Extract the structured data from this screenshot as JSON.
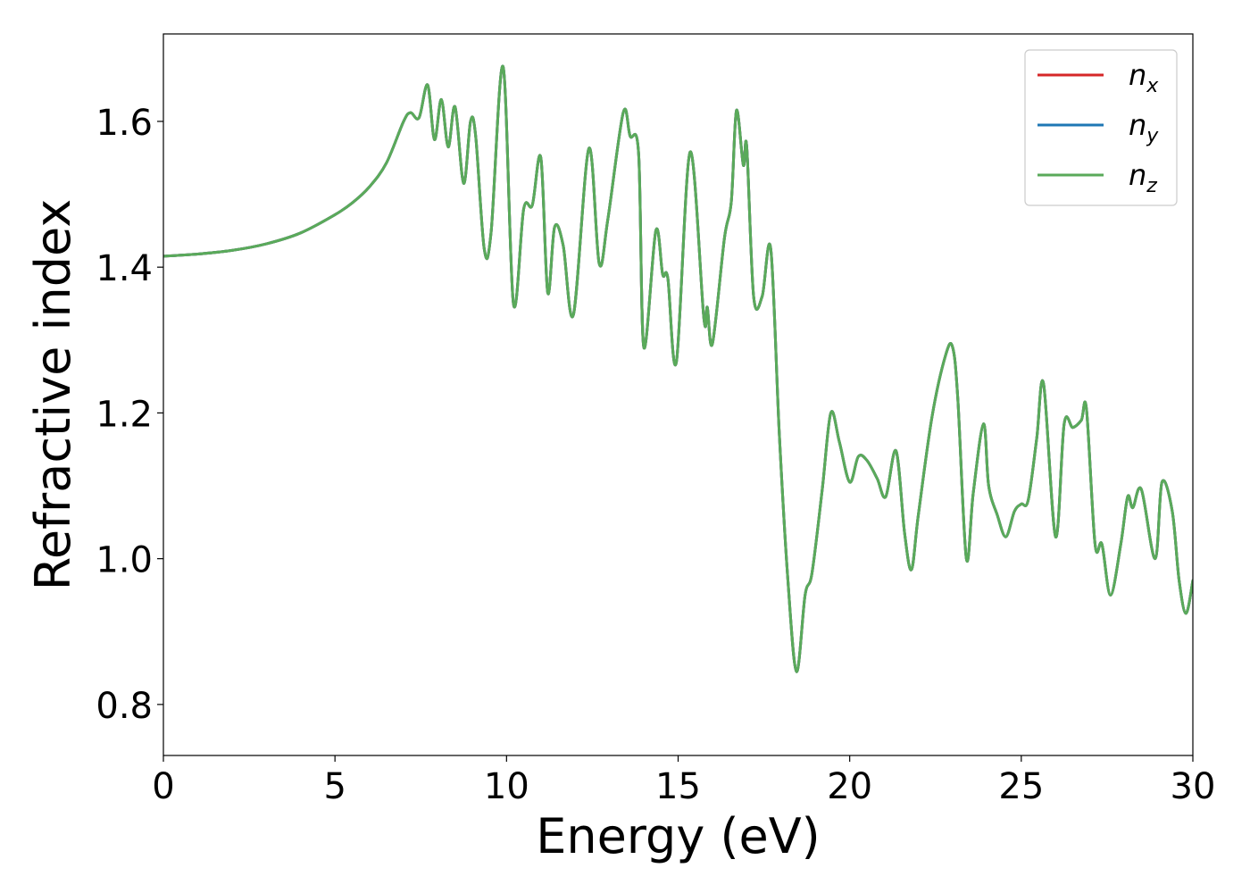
{
  "chart_data": {
    "type": "line",
    "xlabel": "Energy (eV)",
    "ylabel": "Refractive index",
    "xlim": [
      0,
      30
    ],
    "ylim": [
      0.73,
      1.72
    ],
    "xticks": [
      0,
      5,
      10,
      15,
      20,
      25,
      30
    ],
    "xtick_labels": [
      "0",
      "5",
      "10",
      "15",
      "20",
      "25",
      "30"
    ],
    "yticks": [
      0.8,
      1.0,
      1.2,
      1.4,
      1.6
    ],
    "ytick_labels": [
      "0.8",
      "1.0",
      "1.2",
      "1.4",
      "1.6"
    ],
    "grid": false,
    "legend_position": "top-right",
    "series": [
      {
        "name": "n_x",
        "label_base": "n",
        "label_sub": "x",
        "color": "#d62728",
        "x": [
          0,
          1,
          2,
          3,
          4,
          5,
          5.5,
          6,
          6.5,
          7,
          7.2,
          7.45,
          7.7,
          7.9,
          8.1,
          8.3,
          8.5,
          8.75,
          8.95,
          9.1,
          9.35,
          9.55,
          9.9,
          10.2,
          10.5,
          10.75,
          11.0,
          11.2,
          11.4,
          11.65,
          11.95,
          12.4,
          12.7,
          12.95,
          13.4,
          13.6,
          13.85,
          14.0,
          14.35,
          14.55,
          14.7,
          14.95,
          15.35,
          15.75,
          15.85,
          16.0,
          16.35,
          16.55,
          16.7,
          16.9,
          17.0,
          17.2,
          17.45,
          17.7,
          17.95,
          18.2,
          18.45,
          18.7,
          18.9,
          19.2,
          19.45,
          19.7,
          20.0,
          20.25,
          20.5,
          20.8,
          21.05,
          21.35,
          21.6,
          21.8,
          22.0,
          22.4,
          22.8,
          23.0,
          23.15,
          23.4,
          23.6,
          23.9,
          24.05,
          24.3,
          24.55,
          24.8,
          25.0,
          25.2,
          25.45,
          25.65,
          26.0,
          26.25,
          26.5,
          26.75,
          26.9,
          27.15,
          27.35,
          27.6,
          27.9,
          28.1,
          28.25,
          28.5,
          28.9,
          29.1,
          29.4,
          29.6,
          29.8,
          30.0
        ],
        "y": [
          1.415,
          1.418,
          1.423,
          1.432,
          1.447,
          1.472,
          1.488,
          1.51,
          1.543,
          1.6,
          1.612,
          1.605,
          1.65,
          1.575,
          1.63,
          1.565,
          1.62,
          1.515,
          1.6,
          1.58,
          1.425,
          1.448,
          1.675,
          1.35,
          1.48,
          1.485,
          1.55,
          1.365,
          1.455,
          1.43,
          1.335,
          1.563,
          1.405,
          1.465,
          1.612,
          1.58,
          1.555,
          1.29,
          1.45,
          1.39,
          1.385,
          1.27,
          1.558,
          1.33,
          1.345,
          1.295,
          1.44,
          1.49,
          1.615,
          1.54,
          1.565,
          1.36,
          1.36,
          1.425,
          1.17,
          0.97,
          0.845,
          0.95,
          0.98,
          1.095,
          1.2,
          1.16,
          1.105,
          1.14,
          1.135,
          1.11,
          1.085,
          1.148,
          1.035,
          0.985,
          1.06,
          1.195,
          1.28,
          1.29,
          1.22,
          1.0,
          1.09,
          1.185,
          1.1,
          1.06,
          1.03,
          1.065,
          1.075,
          1.08,
          1.165,
          1.24,
          1.03,
          1.185,
          1.18,
          1.19,
          1.205,
          1.02,
          1.02,
          0.95,
          1.02,
          1.085,
          1.07,
          1.095,
          1.0,
          1.105,
          1.065,
          0.97,
          0.925,
          0.97
        ]
      },
      {
        "name": "n_y",
        "label_base": "n",
        "label_sub": "y",
        "color": "#1f77b4",
        "x": [
          0,
          1,
          2,
          3,
          4,
          5,
          5.5,
          6,
          6.5,
          7,
          7.2,
          7.45,
          7.7,
          7.9,
          8.1,
          8.3,
          8.5,
          8.75,
          8.95,
          9.1,
          9.35,
          9.55,
          9.9,
          10.2,
          10.5,
          10.75,
          11.0,
          11.2,
          11.4,
          11.65,
          11.95,
          12.4,
          12.7,
          12.95,
          13.4,
          13.6,
          13.85,
          14.0,
          14.35,
          14.55,
          14.7,
          14.95,
          15.35,
          15.75,
          15.85,
          16.0,
          16.35,
          16.55,
          16.7,
          16.9,
          17.0,
          17.2,
          17.45,
          17.7,
          17.95,
          18.2,
          18.45,
          18.7,
          18.9,
          19.2,
          19.45,
          19.7,
          20.0,
          20.25,
          20.5,
          20.8,
          21.05,
          21.35,
          21.6,
          21.8,
          22.0,
          22.4,
          22.8,
          23.0,
          23.15,
          23.4,
          23.6,
          23.9,
          24.05,
          24.3,
          24.55,
          24.8,
          25.0,
          25.2,
          25.45,
          25.65,
          26.0,
          26.25,
          26.5,
          26.75,
          26.9,
          27.15,
          27.35,
          27.6,
          27.9,
          28.1,
          28.25,
          28.5,
          28.9,
          29.1,
          29.4,
          29.6,
          29.8,
          30.0
        ],
        "y": [
          1.415,
          1.418,
          1.423,
          1.432,
          1.447,
          1.472,
          1.488,
          1.51,
          1.543,
          1.6,
          1.612,
          1.605,
          1.65,
          1.575,
          1.63,
          1.565,
          1.62,
          1.515,
          1.6,
          1.58,
          1.425,
          1.448,
          1.675,
          1.35,
          1.48,
          1.485,
          1.55,
          1.365,
          1.455,
          1.43,
          1.335,
          1.563,
          1.405,
          1.465,
          1.612,
          1.58,
          1.555,
          1.29,
          1.45,
          1.39,
          1.385,
          1.27,
          1.558,
          1.33,
          1.345,
          1.295,
          1.44,
          1.49,
          1.615,
          1.54,
          1.565,
          1.36,
          1.36,
          1.425,
          1.17,
          0.97,
          0.845,
          0.95,
          0.98,
          1.095,
          1.2,
          1.16,
          1.105,
          1.14,
          1.135,
          1.11,
          1.085,
          1.148,
          1.035,
          0.985,
          1.06,
          1.195,
          1.28,
          1.29,
          1.22,
          1.0,
          1.09,
          1.185,
          1.1,
          1.06,
          1.03,
          1.065,
          1.075,
          1.08,
          1.165,
          1.24,
          1.03,
          1.185,
          1.18,
          1.19,
          1.205,
          1.02,
          1.02,
          0.95,
          1.02,
          1.085,
          1.07,
          1.095,
          1.0,
          1.105,
          1.065,
          0.97,
          0.925,
          0.97
        ]
      },
      {
        "name": "n_z",
        "label_base": "n",
        "label_sub": "z",
        "color": "#5aaa5a",
        "x": [
          0,
          1,
          2,
          3,
          4,
          5,
          5.5,
          6,
          6.5,
          7,
          7.2,
          7.45,
          7.7,
          7.9,
          8.1,
          8.3,
          8.5,
          8.75,
          8.95,
          9.1,
          9.35,
          9.55,
          9.9,
          10.2,
          10.5,
          10.75,
          11.0,
          11.2,
          11.4,
          11.65,
          11.95,
          12.4,
          12.7,
          12.95,
          13.4,
          13.6,
          13.85,
          14.0,
          14.35,
          14.55,
          14.7,
          14.95,
          15.35,
          15.75,
          15.85,
          16.0,
          16.35,
          16.55,
          16.7,
          16.9,
          17.0,
          17.2,
          17.45,
          17.7,
          17.95,
          18.2,
          18.45,
          18.7,
          18.9,
          19.2,
          19.45,
          19.7,
          20.0,
          20.25,
          20.5,
          20.8,
          21.05,
          21.35,
          21.6,
          21.8,
          22.0,
          22.4,
          22.8,
          23.0,
          23.15,
          23.4,
          23.6,
          23.9,
          24.05,
          24.3,
          24.55,
          24.8,
          25.0,
          25.2,
          25.45,
          25.65,
          26.0,
          26.25,
          26.5,
          26.75,
          26.9,
          27.15,
          27.35,
          27.6,
          27.9,
          28.1,
          28.25,
          28.5,
          28.9,
          29.1,
          29.4,
          29.6,
          29.8,
          30.0
        ],
        "y": [
          1.415,
          1.418,
          1.423,
          1.432,
          1.447,
          1.472,
          1.488,
          1.51,
          1.543,
          1.6,
          1.612,
          1.605,
          1.65,
          1.575,
          1.63,
          1.565,
          1.62,
          1.515,
          1.6,
          1.58,
          1.425,
          1.448,
          1.675,
          1.35,
          1.48,
          1.485,
          1.55,
          1.365,
          1.455,
          1.43,
          1.335,
          1.563,
          1.405,
          1.465,
          1.612,
          1.58,
          1.555,
          1.29,
          1.45,
          1.39,
          1.385,
          1.27,
          1.558,
          1.33,
          1.345,
          1.295,
          1.44,
          1.49,
          1.615,
          1.54,
          1.565,
          1.36,
          1.36,
          1.425,
          1.17,
          0.97,
          0.845,
          0.95,
          0.98,
          1.095,
          1.2,
          1.16,
          1.105,
          1.14,
          1.135,
          1.11,
          1.085,
          1.148,
          1.035,
          0.985,
          1.06,
          1.195,
          1.28,
          1.29,
          1.22,
          1.0,
          1.09,
          1.185,
          1.1,
          1.06,
          1.03,
          1.065,
          1.075,
          1.08,
          1.165,
          1.24,
          1.03,
          1.185,
          1.18,
          1.19,
          1.205,
          1.02,
          1.02,
          0.95,
          1.02,
          1.085,
          1.07,
          1.095,
          1.0,
          1.105,
          1.065,
          0.97,
          0.925,
          0.97
        ]
      }
    ]
  }
}
